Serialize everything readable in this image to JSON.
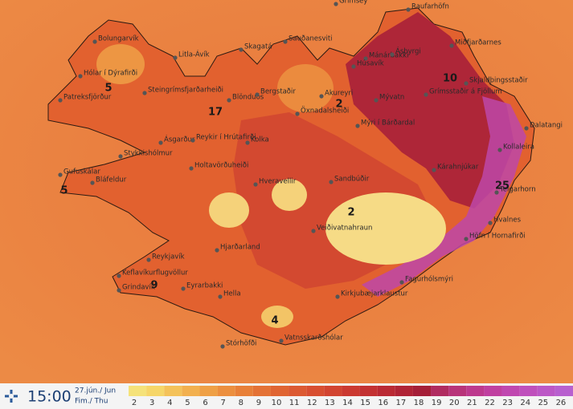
{
  "bottom_bar": {
    "time": "15:00",
    "date": "27.jún./ Jun",
    "weekday": "Fim./ Thu"
  },
  "places": [
    "Grímsey",
    "Raufarhöfn",
    "Bolungarvík",
    "Sauðanesviti",
    "Mánárbakki",
    "Ásbyrgi",
    "Miðfjarðarnes",
    "Hólar í Dýrafirði",
    "Litla-Ávík",
    "Skagatá",
    "Húsavík",
    "Patreksfjörður",
    "Steingrímsfjarðarheiði",
    "Blönduós",
    "Bergstaðir",
    "Akureyri",
    "Grímsstaðir á Fjöllum",
    "Skjaldþingsstaðir",
    "Öxnadalsheiði",
    "Mývatn",
    "Mýri í Bárðardal",
    "Dalatangi",
    "Ásgarður",
    "Reykir í Hrútafirði",
    "Kolka",
    "Stykkishólmur",
    "Kollaleira",
    "Gufuskálar",
    "Holtavörðuheiði",
    "Kárahnjúkar",
    "Sandbúðir",
    "Hveravellir",
    "Bláfeldur",
    "Teigarhorn",
    "Veiðivatnahraun",
    "Hvalnes",
    "Höfn í Hornafirði",
    "Hjarðarland",
    "Reykjavík",
    "Keflavíkurflugvöllur",
    "Grindavík",
    "Eyrarbakki",
    "Hella",
    "Fagurhólsmýri",
    "Kirkjubæjarklaustur",
    "Stórhöfði",
    "Vatnsskarðshólar"
  ],
  "map_values": [
    5,
    5,
    2,
    10,
    17,
    2,
    25,
    9,
    4
  ],
  "legend": [
    {
      "label": 2,
      "color": "#f5e27a"
    },
    {
      "label": 3,
      "color": "#f6d669"
    },
    {
      "label": 4,
      "color": "#f4c25a"
    },
    {
      "label": 5,
      "color": "#f2b04f"
    },
    {
      "label": 6,
      "color": "#efa046"
    },
    {
      "label": 7,
      "color": "#ec8f3f"
    },
    {
      "label": 8,
      "color": "#e88039"
    },
    {
      "label": 9,
      "color": "#e47236"
    },
    {
      "label": 10,
      "color": "#e06533"
    },
    {
      "label": 11,
      "color": "#dc5a32"
    },
    {
      "label": 12,
      "color": "#d84f31"
    },
    {
      "label": 13,
      "color": "#d24531"
    },
    {
      "label": 14,
      "color": "#cb3a31"
    },
    {
      "label": 15,
      "color": "#c33232"
    },
    {
      "label": 16,
      "color": "#ba2a34"
    },
    {
      "label": 17,
      "color": "#b02436"
    },
    {
      "label": 18,
      "color": "#a51f38"
    },
    {
      "label": 19,
      "color": "#b02c60"
    },
    {
      "label": 20,
      "color": "#b8347a"
    },
    {
      "label": 21,
      "color": "#bd3a8e"
    },
    {
      "label": 22,
      "color": "#c040a0"
    },
    {
      "label": 23,
      "color": "#c048b0"
    },
    {
      "label": 24,
      "color": "#bf50bc"
    },
    {
      "label": 25,
      "color": "#bc58c6"
    },
    {
      "label": 26,
      "color": "#b860cf"
    }
  ]
}
